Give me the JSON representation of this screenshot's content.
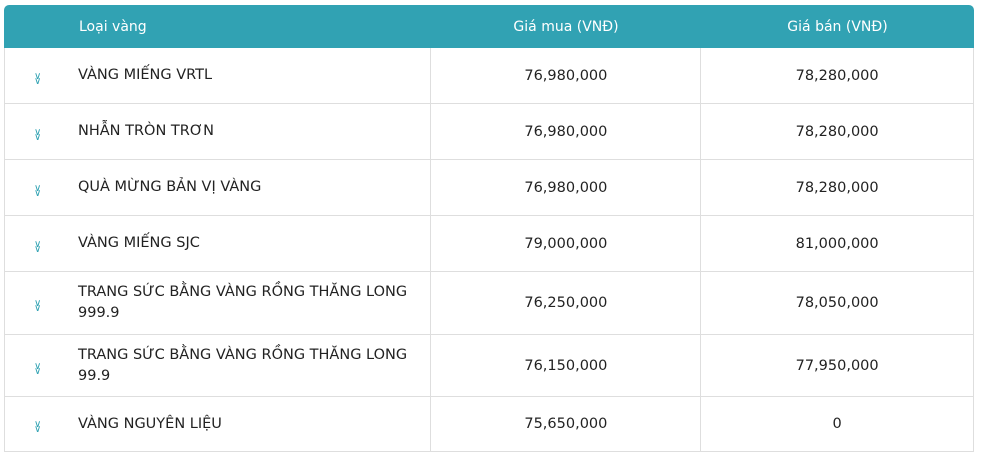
{
  "header": {
    "type": "Loại vàng",
    "buy": "Giá mua (VNĐ)",
    "sell": "Giá bán (VNĐ)"
  },
  "accent": "#31a2b3",
  "rows": [
    {
      "name": "VÀNG MIẾNG VRTL",
      "buy": "76,980,000",
      "sell": "78,280,000",
      "icon": "chevron-double-down-icon"
    },
    {
      "name": "NHẪN TRÒN TRƠN",
      "buy": "76,980,000",
      "sell": "78,280,000",
      "icon": "chevron-double-down-icon"
    },
    {
      "name": "QUÀ MỪNG BẢN VỊ VÀNG",
      "buy": "76,980,000",
      "sell": "78,280,000",
      "icon": "chevron-double-down-icon"
    },
    {
      "name": "VÀNG MIẾNG SJC",
      "buy": "79,000,000",
      "sell": "81,000,000",
      "icon": "chevron-double-down-icon"
    },
    {
      "name": "TRANG SỨC BẰNG VÀNG RỒNG THĂNG LONG 999.9",
      "buy": "76,250,000",
      "sell": "78,050,000",
      "icon": "chevron-double-down-icon"
    },
    {
      "name": "TRANG SỨC BẰNG VÀNG RỒNG THĂNG LONG 99.9",
      "buy": "76,150,000",
      "sell": "77,950,000",
      "icon": "chevron-double-down-icon"
    },
    {
      "name": "VÀNG NGUYÊN LIỆU",
      "buy": "75,650,000",
      "sell": "0",
      "icon": "chevron-double-down-icon"
    }
  ]
}
